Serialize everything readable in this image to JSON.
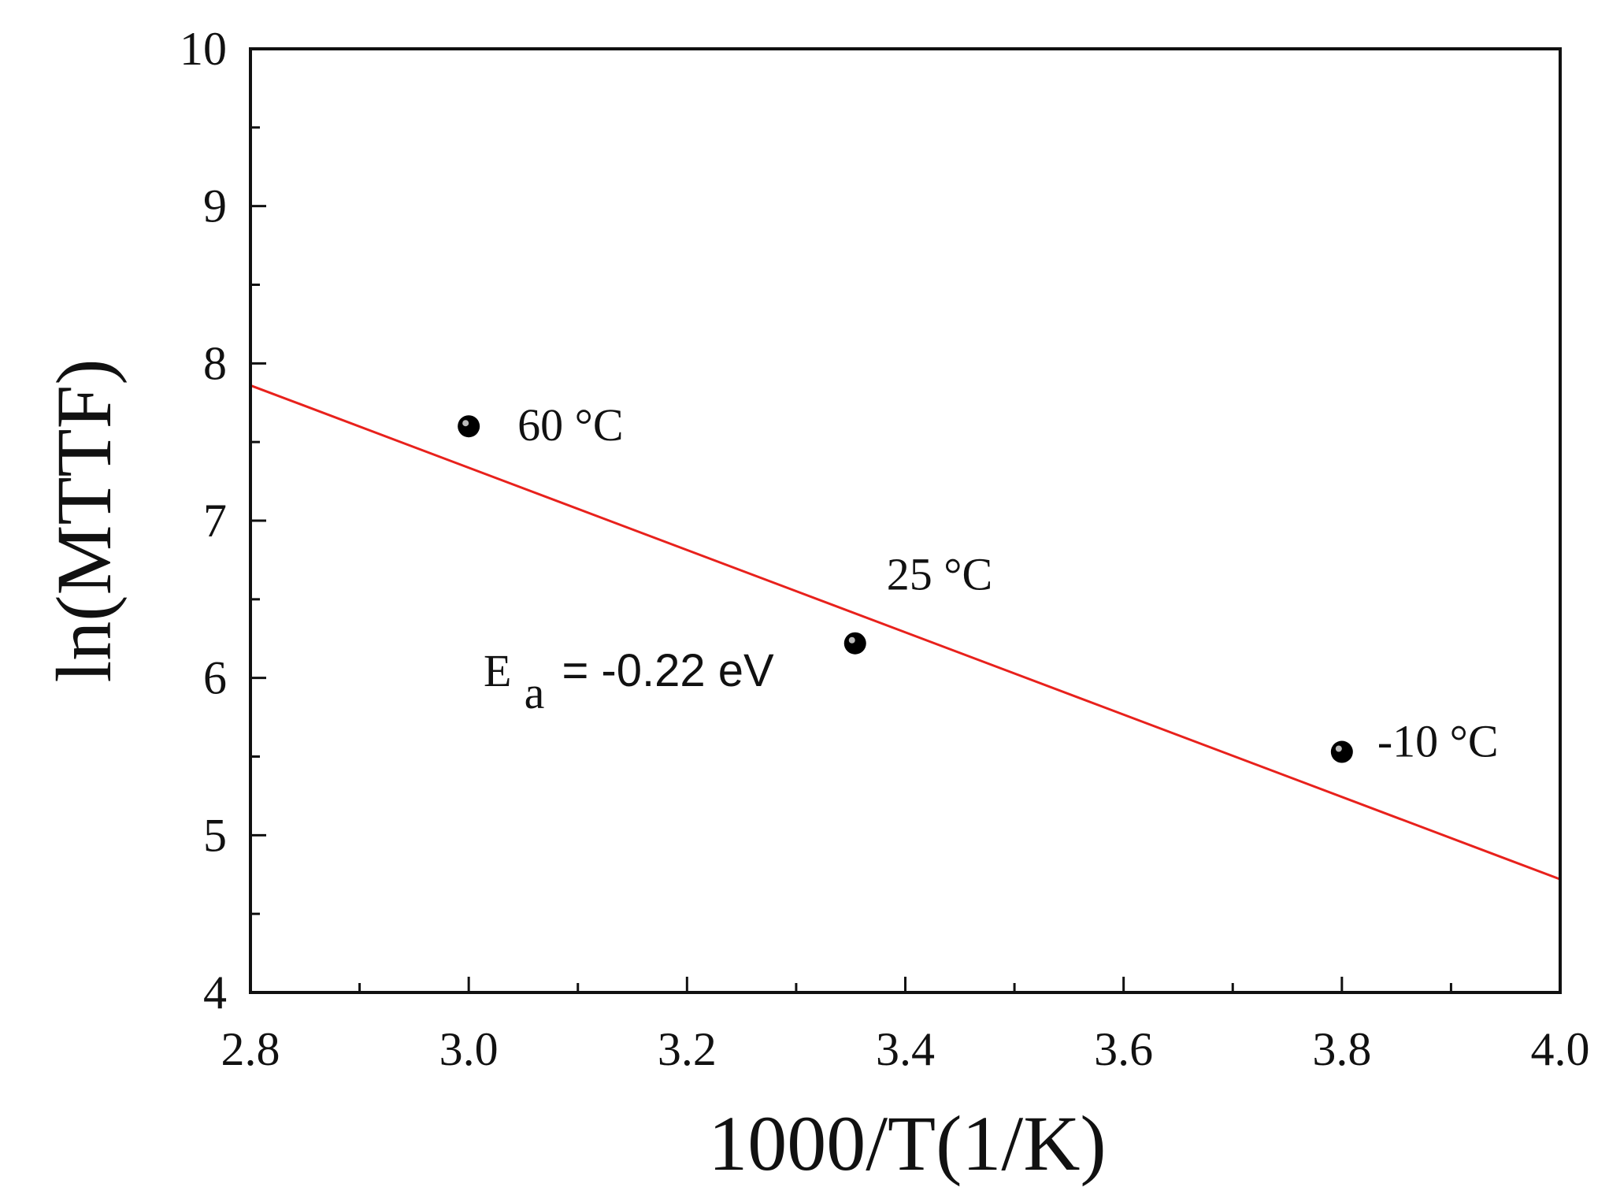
{
  "chart_data": {
    "type": "scatter",
    "xlabel": "1000/T(1/K)",
    "ylabel": "ln(MTTF)",
    "xlim": [
      2.8,
      4.0
    ],
    "ylim": [
      4,
      10
    ],
    "x_ticks": [
      "2.8",
      "3.0",
      "3.2",
      "3.4",
      "3.6",
      "3.8",
      "4.0"
    ],
    "y_ticks": [
      "4",
      "5",
      "6",
      "7",
      "8",
      "9",
      "10"
    ],
    "grid": false,
    "points": [
      {
        "x": 3.0,
        "y": 7.6,
        "label": "60 °C"
      },
      {
        "x": 3.354,
        "y": 6.22,
        "label": "25 °C"
      },
      {
        "x": 3.8,
        "y": 5.53,
        "label": "-10 °C"
      }
    ],
    "fit_line": {
      "color": "#e8211c",
      "x": [
        2.8,
        4.0
      ],
      "y": [
        7.86,
        4.72
      ]
    },
    "annotation": {
      "prefix": "E",
      "subscript": "a",
      "text": "= -0.22 eV"
    },
    "point_color": "#000000"
  }
}
